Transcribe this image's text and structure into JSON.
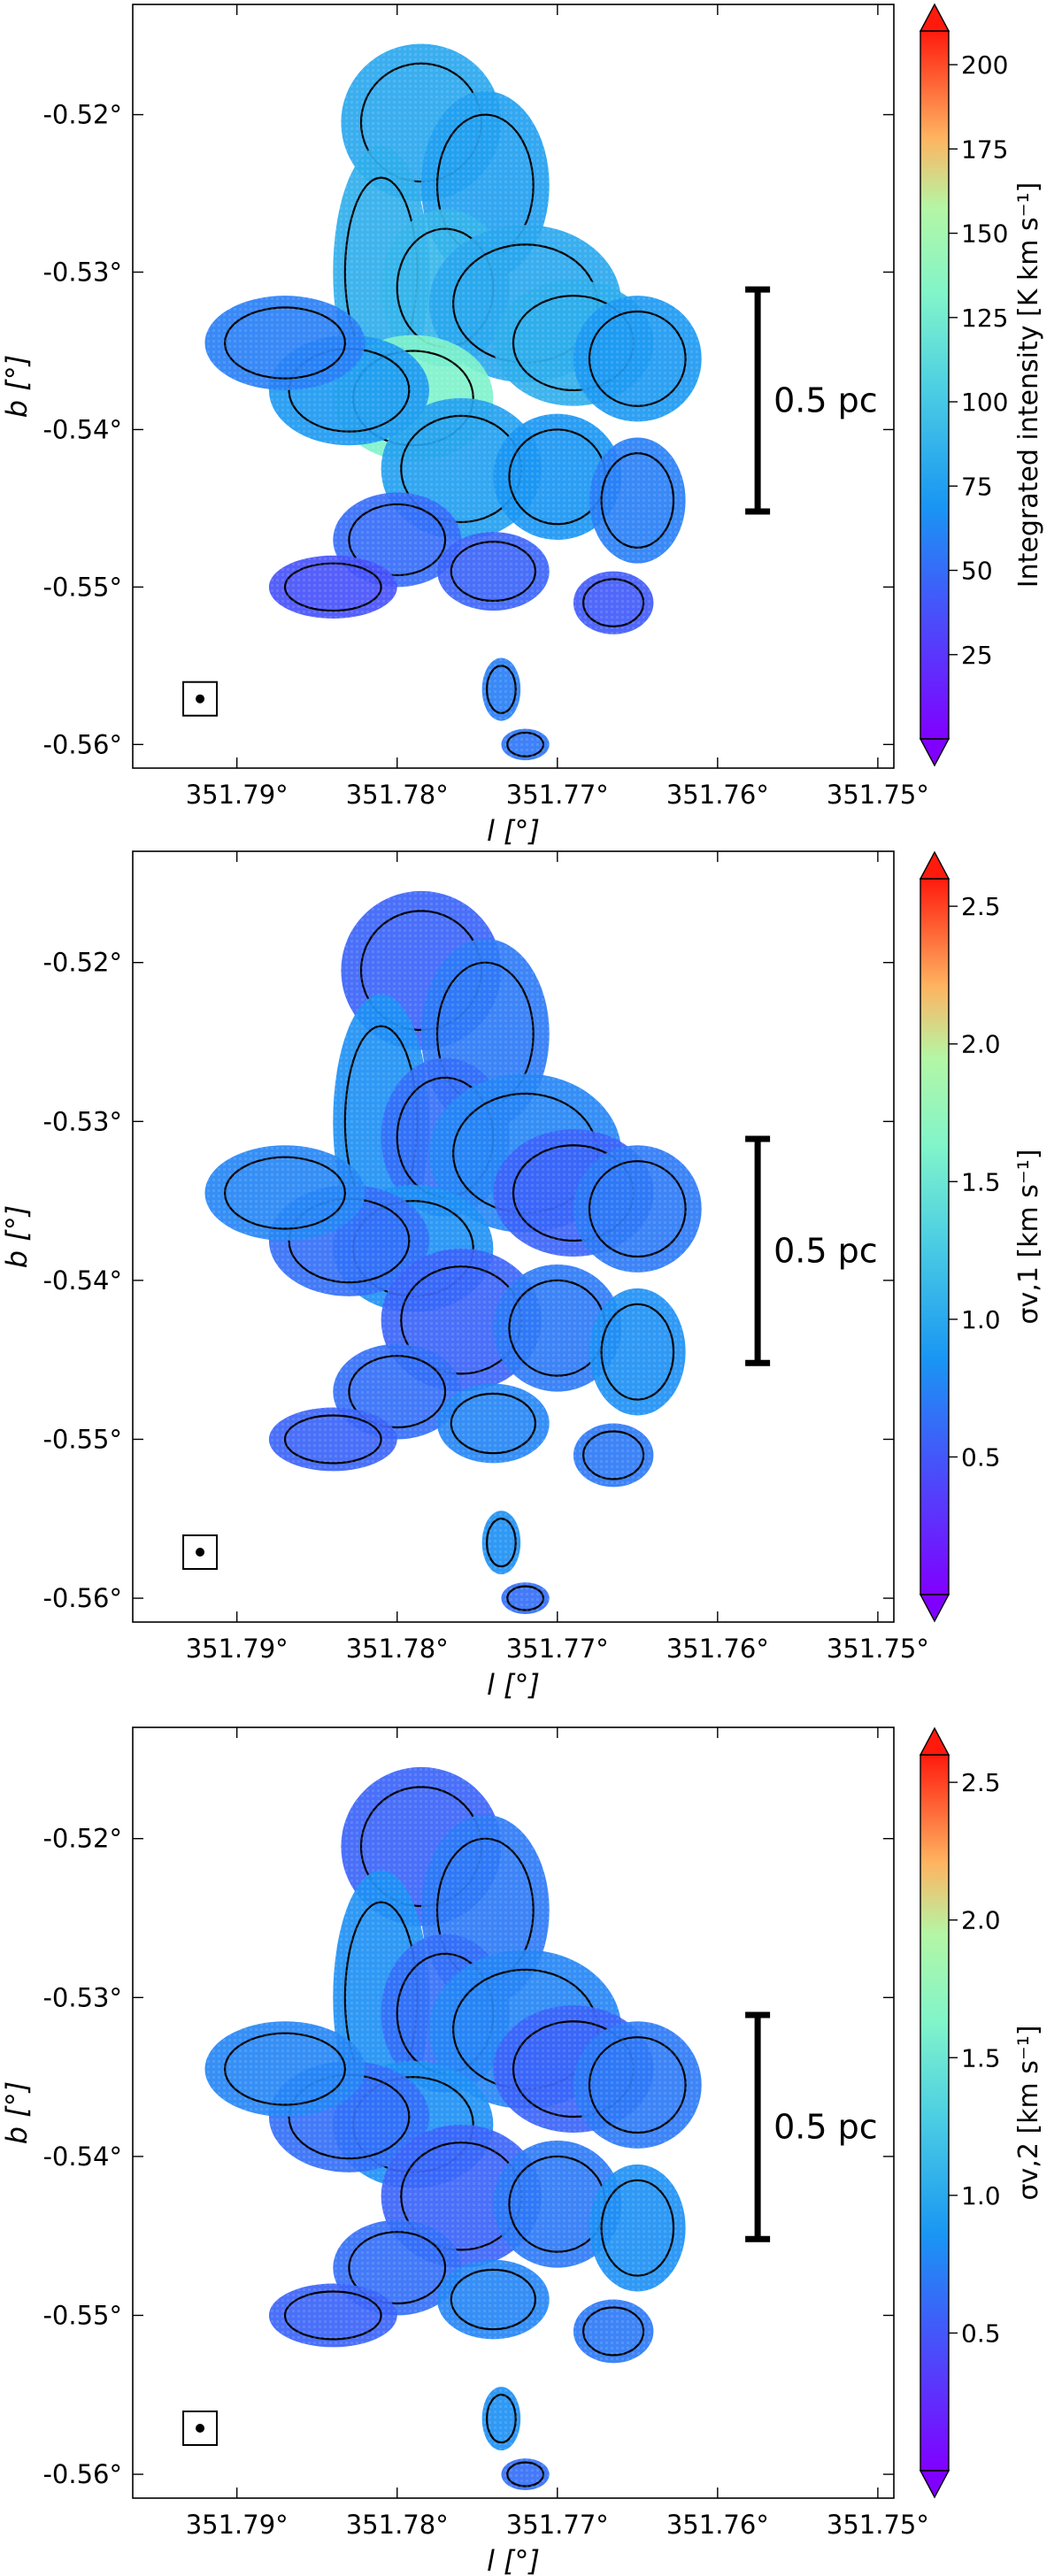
{
  "chart_data": [
    {
      "type": "heatmap",
      "title": "",
      "xlabel": "l [°]",
      "ylabel": "b [°]",
      "xlim": [
        351.7965,
        351.749
      ],
      "ylim": [
        -0.5615,
        -0.513
      ],
      "x_ticks": [
        {
          "value": 351.79,
          "label": "351.79°"
        },
        {
          "value": 351.78,
          "label": "351.78°"
        },
        {
          "value": 351.77,
          "label": "351.77°"
        },
        {
          "value": 351.76,
          "label": "351.76°"
        },
        {
          "value": 351.75,
          "label": "351.75°"
        }
      ],
      "y_ticks": [
        {
          "value": -0.52,
          "label": "-0.52°"
        },
        {
          "value": -0.53,
          "label": "-0.53°"
        },
        {
          "value": -0.54,
          "label": "-0.54°"
        },
        {
          "value": -0.55,
          "label": "-0.55°"
        },
        {
          "value": -0.56,
          "label": "-0.56°"
        }
      ],
      "colorbar": {
        "label": "Integrated intensity [K km s⁻¹]",
        "range": [
          0,
          210
        ],
        "ticks": [
          {
            "value": 25,
            "label": "25"
          },
          {
            "value": 50,
            "label": "50"
          },
          {
            "value": 75,
            "label": "75"
          },
          {
            "value": 100,
            "label": "100"
          },
          {
            "value": 125,
            "label": "125"
          },
          {
            "value": 150,
            "label": "150"
          },
          {
            "value": 175,
            "label": "175"
          },
          {
            "value": 200,
            "label": "200"
          }
        ],
        "colormap": "rainbow",
        "extend": "both"
      },
      "scalebar": {
        "label": "0.5 pc",
        "l": 351.7575,
        "b_top": -0.5311,
        "b_bottom": -0.5452
      },
      "beam": {
        "l": 351.7923,
        "b": -0.5571
      },
      "grid": false
    },
    {
      "type": "heatmap",
      "title": "",
      "xlabel": "l [°]",
      "ylabel": "b [°]",
      "xlim": [
        351.7965,
        351.749
      ],
      "ylim": [
        -0.5615,
        -0.513
      ],
      "x_ticks": [
        {
          "value": 351.79,
          "label": "351.79°"
        },
        {
          "value": 351.78,
          "label": "351.78°"
        },
        {
          "value": 351.77,
          "label": "351.77°"
        },
        {
          "value": 351.76,
          "label": "351.76°"
        },
        {
          "value": 351.75,
          "label": "351.75°"
        }
      ],
      "y_ticks": [
        {
          "value": -0.52,
          "label": "-0.52°"
        },
        {
          "value": -0.53,
          "label": "-0.53°"
        },
        {
          "value": -0.54,
          "label": "-0.54°"
        },
        {
          "value": -0.55,
          "label": "-0.55°"
        },
        {
          "value": -0.56,
          "label": "-0.56°"
        }
      ],
      "colorbar": {
        "label": "σv,1 [km s⁻¹]",
        "range": [
          0,
          2.6
        ],
        "ticks": [
          {
            "value": 0.5,
            "label": "0.5"
          },
          {
            "value": 1.0,
            "label": "1.0"
          },
          {
            "value": 1.5,
            "label": "1.5"
          },
          {
            "value": 2.0,
            "label": "2.0"
          },
          {
            "value": 2.5,
            "label": "2.5"
          }
        ],
        "colormap": "rainbow",
        "extend": "both"
      },
      "scalebar": {
        "label": "0.5 pc",
        "l": 351.7575,
        "b_top": -0.5311,
        "b_bottom": -0.5452
      },
      "beam": {
        "l": 351.7923,
        "b": -0.5571
      },
      "grid": false
    },
    {
      "type": "heatmap",
      "title": "",
      "xlabel": "l [°]",
      "ylabel": "b [°]",
      "xlim": [
        351.7965,
        351.749
      ],
      "ylim": [
        -0.5615,
        -0.513
      ],
      "x_ticks": [
        {
          "value": 351.79,
          "label": "351.79°"
        },
        {
          "value": 351.78,
          "label": "351.78°"
        },
        {
          "value": 351.77,
          "label": "351.77°"
        },
        {
          "value": 351.76,
          "label": "351.76°"
        },
        {
          "value": 351.75,
          "label": "351.75°"
        }
      ],
      "y_ticks": [
        {
          "value": -0.52,
          "label": "-0.52°"
        },
        {
          "value": -0.53,
          "label": "-0.53°"
        },
        {
          "value": -0.54,
          "label": "-0.54°"
        },
        {
          "value": -0.55,
          "label": "-0.55°"
        },
        {
          "value": -0.56,
          "label": "-0.56°"
        }
      ],
      "colorbar": {
        "label": "σv,2 [km s⁻¹]",
        "range": [
          0,
          2.6
        ],
        "ticks": [
          {
            "value": 0.5,
            "label": "0.5"
          },
          {
            "value": 1.0,
            "label": "1.0"
          },
          {
            "value": 1.5,
            "label": "1.5"
          },
          {
            "value": 2.0,
            "label": "2.0"
          },
          {
            "value": 2.5,
            "label": "2.5"
          }
        ],
        "colormap": "rainbow",
        "extend": "both"
      },
      "scalebar": {
        "label": "0.5 pc",
        "l": 351.7575,
        "b_top": -0.5311,
        "b_bottom": -0.5452
      },
      "beam": {
        "l": 351.7923,
        "b": -0.5571
      },
      "grid": false
    }
  ]
}
